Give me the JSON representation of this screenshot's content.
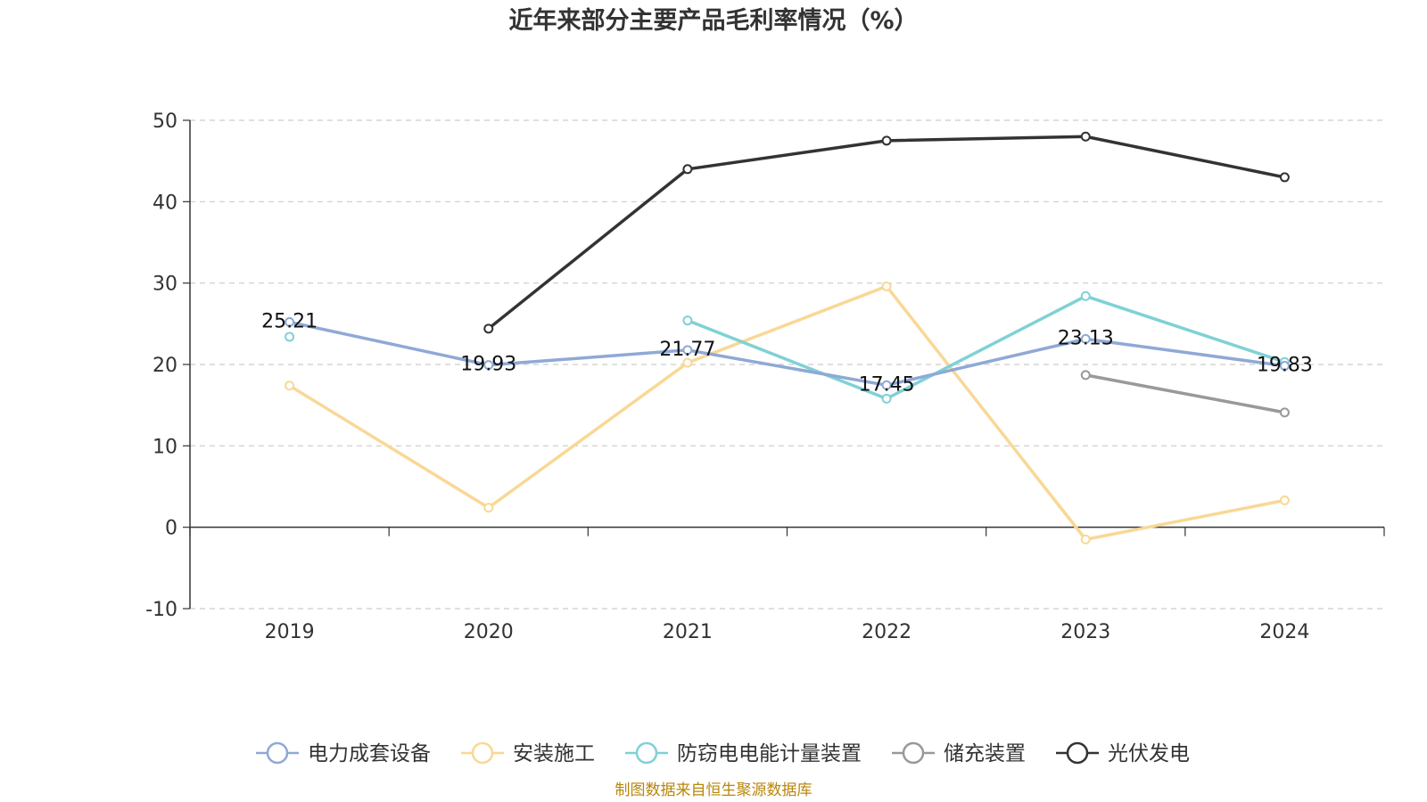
{
  "source_note": "制图数据来自恒生聚源数据库",
  "chart_data": {
    "type": "line",
    "title": "近年来部分主要产品毛利率情况（%）",
    "xlabel": "",
    "ylabel": "",
    "categories": [
      "2019",
      "2020",
      "2021",
      "2022",
      "2023",
      "2024"
    ],
    "ylim": [
      -10,
      50
    ],
    "yticks": [
      -10,
      0,
      10,
      20,
      30,
      40,
      50
    ],
    "grid": true,
    "legend_position": "bottom",
    "series": [
      {
        "name": "电力成套设备",
        "color": "#8fa9d6",
        "values": [
          25.21,
          19.93,
          21.77,
          17.45,
          23.13,
          19.83
        ],
        "labels": [
          "25.21",
          "19.93",
          "21.77",
          "17.45",
          "23.13",
          "19.83"
        ]
      },
      {
        "name": "安装施工",
        "color": "#f9d895",
        "values": [
          17.4,
          2.4,
          20.2,
          29.6,
          -1.5,
          3.3
        ]
      },
      {
        "name": "防窃电电能计量装置",
        "color": "#7fd1d6",
        "values": [
          23.4,
          null,
          25.4,
          15.8,
          28.4,
          20.3
        ]
      },
      {
        "name": "储充装置",
        "color": "#999999",
        "values": [
          null,
          null,
          null,
          null,
          18.7,
          14.1
        ]
      },
      {
        "name": "光伏发电",
        "color": "#333333",
        "values": [
          null,
          24.4,
          44.0,
          47.5,
          48.0,
          43.0
        ]
      }
    ]
  }
}
